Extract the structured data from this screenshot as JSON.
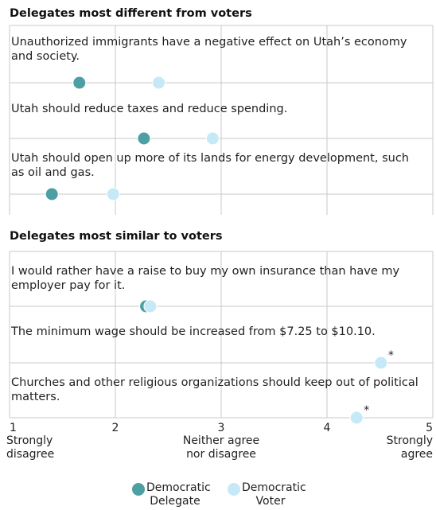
{
  "chart_data": {
    "type": "dot",
    "series": [
      {
        "name": "Democratic Delegate",
        "color": "#4e9fa3"
      },
      {
        "name": "Democratic Voter",
        "color": "#c6e9f8"
      }
    ],
    "groups": [
      {
        "title": "Delegates most different from voters",
        "items": [
          {
            "label": "Unauthorized immigrants have a negative effect on Utah’s economy and society.",
            "values": [
              1.66,
              2.41
            ]
          },
          {
            "label": "Utah should reduce taxes and reduce spending.",
            "values": [
              2.27,
              2.92
            ]
          },
          {
            "label": "Utah should open up more of its lands for energy development, such as oil and gas.",
            "values": [
              1.4,
              1.98
            ]
          }
        ]
      },
      {
        "title": "Delegates most similar to voters",
        "items": [
          {
            "label": "I would rather have a raise to buy my own insurance than have my employer pay for it.",
            "values": [
              2.29,
              2.33
            ]
          },
          {
            "label": "The minimum wage should be increased from $7.25 to $10.10.",
            "values": [
              4.51,
              4.51
            ],
            "annotation": "*"
          },
          {
            "label": "Churches and other religious organizations should keep out of political matters.",
            "values": [
              4.28,
              4.28
            ],
            "annotation": "*"
          }
        ]
      }
    ],
    "xlim": [
      1,
      5
    ],
    "xticks": [
      1,
      2,
      3,
      4,
      5
    ],
    "xtick_descriptions": [
      {
        "value": 1,
        "label": "Strongly disagree"
      },
      {
        "value": 3,
        "label": "Neither agree nor disagree"
      },
      {
        "value": 5,
        "label": "Strongly agree"
      }
    ]
  }
}
